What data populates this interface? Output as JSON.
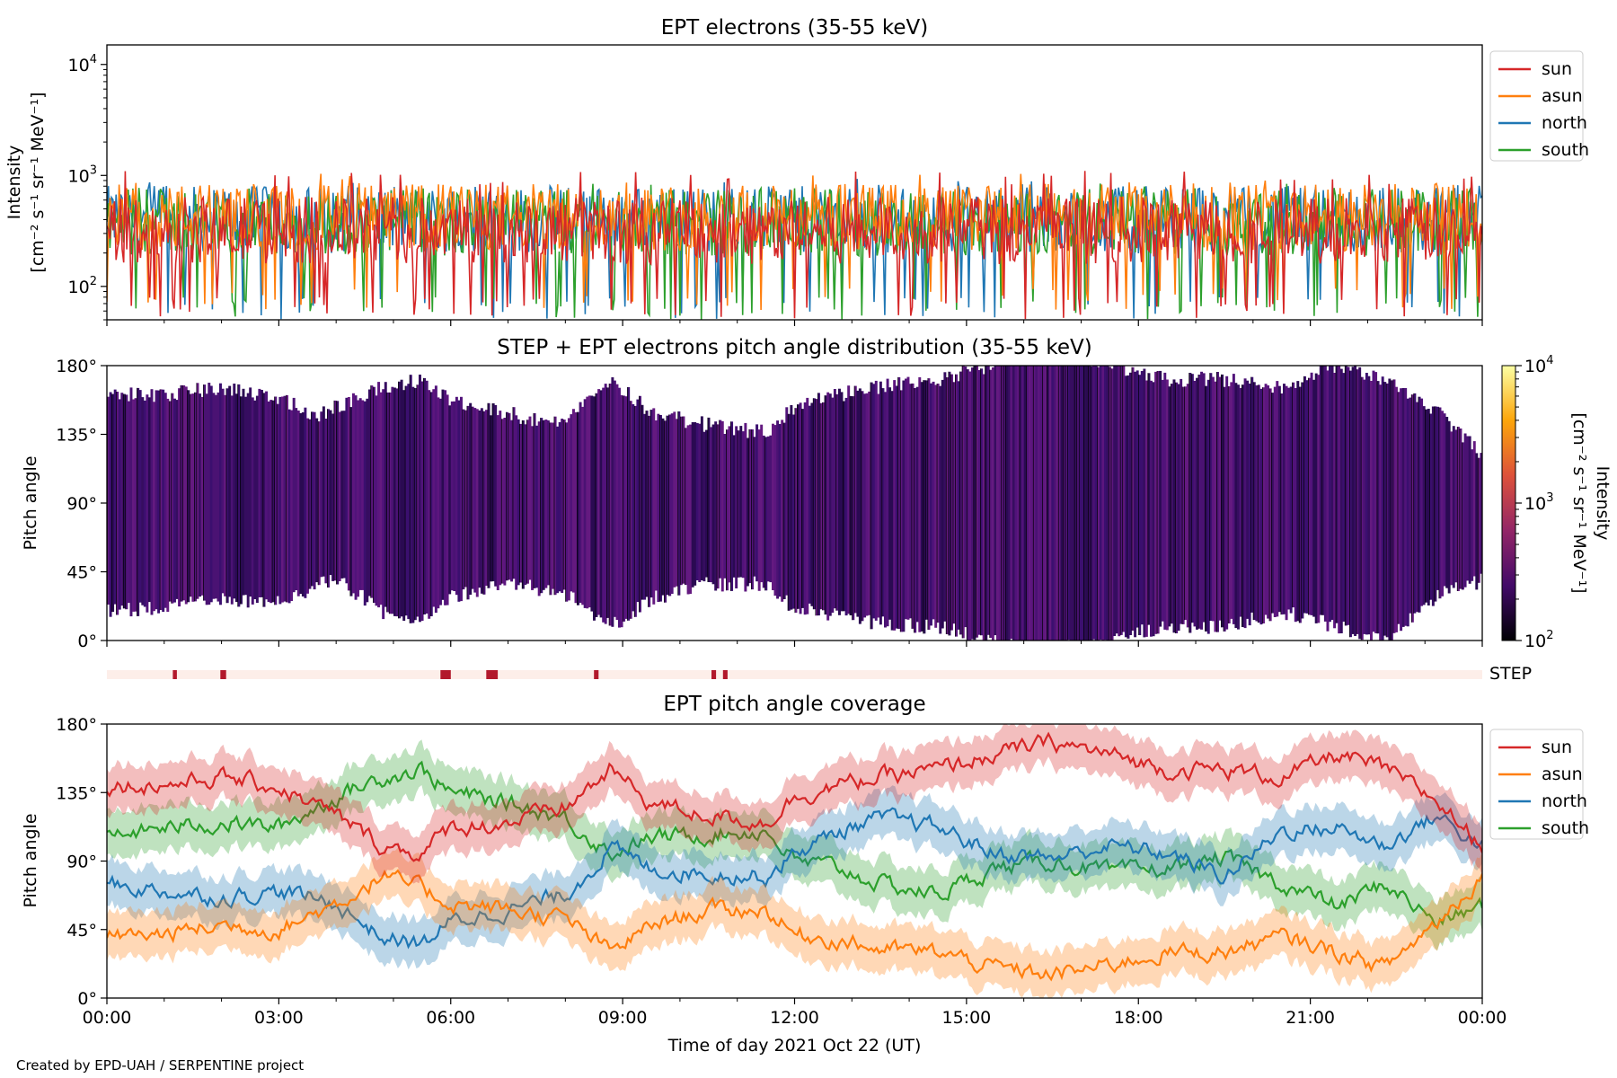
{
  "footer": {
    "credit": "Created by EPD-UAH / SERPENTINE project"
  },
  "chart_data": [
    {
      "type": "line",
      "title": "EPT electrons (35-55 keV)",
      "ylabel_line1": "Intensity",
      "ylabel_line2": "[cm⁻² s⁻¹ sr⁻¹ MeV⁻¹]",
      "yscale": "log",
      "ylim": [
        50,
        15000
      ],
      "yticks": [
        {
          "value": 100,
          "base": "10",
          "exp": "2"
        },
        {
          "value": 1000,
          "base": "10",
          "exp": "3"
        },
        {
          "value": 10000,
          "base": "10",
          "exp": "4"
        }
      ],
      "xlim_hours": [
        0,
        24
      ],
      "legend_position": "top-right",
      "series": [
        {
          "name": "sun",
          "color": "#d62728",
          "typical": 320,
          "min": 50,
          "max": 1100
        },
        {
          "name": "asun",
          "color": "#ff7f0e",
          "typical": 420,
          "min": 60,
          "max": 1050
        },
        {
          "name": "north",
          "color": "#1f77b4",
          "typical": 400,
          "min": 50,
          "max": 950
        },
        {
          "name": "south",
          "color": "#2ca02c",
          "typical": 380,
          "min": 50,
          "max": 850
        }
      ]
    },
    {
      "type": "heatmap",
      "title": "STEP + EPT electrons pitch angle distribution (35-55 keV)",
      "ylabel": "Pitch angle",
      "ylim": [
        0,
        180
      ],
      "yticks": [
        "0°",
        "45°",
        "90°",
        "135°",
        "180°"
      ],
      "xlim_hours": [
        0,
        24
      ],
      "colorbar": {
        "label_line1": "Intensity",
        "label_line2": "[cm⁻² s⁻¹ sr⁻¹ MeV⁻¹]",
        "scale": "log",
        "range": [
          100,
          10000
        ],
        "ticks": [
          {
            "value": 100,
            "base": "10",
            "exp": "2"
          },
          {
            "value": 1000,
            "base": "10",
            "exp": "3"
          },
          {
            "value": 10000,
            "base": "10",
            "exp": "4"
          }
        ],
        "colormap": "inferno",
        "typical_intensity": 300
      }
    },
    {
      "type": "bar",
      "label": "STEP",
      "background_color": "#fdeee9",
      "mark_color": "#b2182b",
      "xlim_hours": [
        0,
        24
      ],
      "intervals_hours": [
        [
          1.15,
          1.22
        ],
        [
          1.98,
          2.08
        ],
        [
          5.82,
          6.0
        ],
        [
          6.62,
          6.82
        ],
        [
          8.5,
          8.58
        ],
        [
          10.55,
          10.63
        ],
        [
          10.75,
          10.83
        ]
      ]
    },
    {
      "type": "line",
      "title": "EPT pitch angle coverage",
      "ylabel": "Pitch angle",
      "xlabel": "Time of day 2021 Oct 22 (UT)",
      "ylim": [
        0,
        180
      ],
      "yticks": [
        "0°",
        "45°",
        "90°",
        "135°",
        "180°"
      ],
      "xlim_hours": [
        0,
        24
      ],
      "xticks": [
        "00:00",
        "03:00",
        "06:00",
        "09:00",
        "12:00",
        "15:00",
        "18:00",
        "21:00",
        "00:00"
      ],
      "legend_position": "top-right",
      "band_halfwidth_deg": 15,
      "series": [
        {
          "name": "sun",
          "color": "#d62728",
          "x": [
            0,
            1,
            2,
            3,
            4,
            4.8,
            5.5,
            6,
            7,
            8,
            8.8,
            9.5,
            10.5,
            11.5,
            12,
            12.8,
            13.5,
            14.5,
            15.5,
            16.5,
            17.5,
            18.5,
            19.5,
            20.5,
            21.5,
            22.3,
            23.2,
            24
          ],
          "y": [
            140,
            140,
            145,
            138,
            120,
            100,
            95,
            112,
            115,
            125,
            150,
            128,
            120,
            115,
            132,
            140,
            145,
            150,
            160,
            168,
            160,
            150,
            150,
            145,
            160,
            150,
            130,
            100
          ]
        },
        {
          "name": "asun",
          "color": "#ff7f0e",
          "x": [
            0,
            1,
            2,
            3,
            4,
            4.8,
            5.5,
            6,
            7,
            8,
            8.8,
            9.5,
            10.5,
            11.5,
            12,
            12.8,
            13.5,
            14.5,
            15.5,
            16.5,
            17.5,
            18.5,
            19.5,
            20.5,
            21.5,
            22.3,
            23.2,
            24
          ],
          "y": [
            40,
            42,
            48,
            45,
            62,
            80,
            72,
            62,
            58,
            52,
            30,
            48,
            58,
            58,
            42,
            38,
            32,
            30,
            20,
            15,
            22,
            30,
            30,
            40,
            30,
            20,
            50,
            80
          ]
        },
        {
          "name": "north",
          "color": "#1f77b4",
          "x": [
            0,
            1,
            2,
            3,
            4,
            4.8,
            5.5,
            6,
            7,
            8,
            8.8,
            9.5,
            10.5,
            11.5,
            12,
            12.8,
            13.5,
            14.5,
            15.5,
            16.5,
            17.5,
            18.5,
            19.5,
            20.5,
            21.5,
            22.3,
            23.2,
            24
          ],
          "y": [
            75,
            70,
            66,
            70,
            62,
            40,
            35,
            50,
            58,
            68,
            98,
            85,
            82,
            80,
            95,
            110,
            118,
            112,
            95,
            92,
            100,
            95,
            80,
            110,
            112,
            100,
            120,
            100
          ]
        },
        {
          "name": "south",
          "color": "#2ca02c",
          "x": [
            0,
            1,
            2,
            3,
            4,
            4.8,
            5.5,
            6,
            7,
            8,
            8.8,
            9.5,
            10.5,
            11.5,
            12,
            12.8,
            13.5,
            14.5,
            15.5,
            16.5,
            17.5,
            18.5,
            19.5,
            20.5,
            21.5,
            22.3,
            23.2,
            24
          ],
          "y": [
            105,
            112,
            115,
            112,
            132,
            145,
            150,
            135,
            128,
            118,
            95,
            105,
            108,
            110,
            90,
            85,
            75,
            68,
            85,
            90,
            82,
            85,
            92,
            75,
            60,
            75,
            50,
            60
          ]
        }
      ]
    }
  ]
}
